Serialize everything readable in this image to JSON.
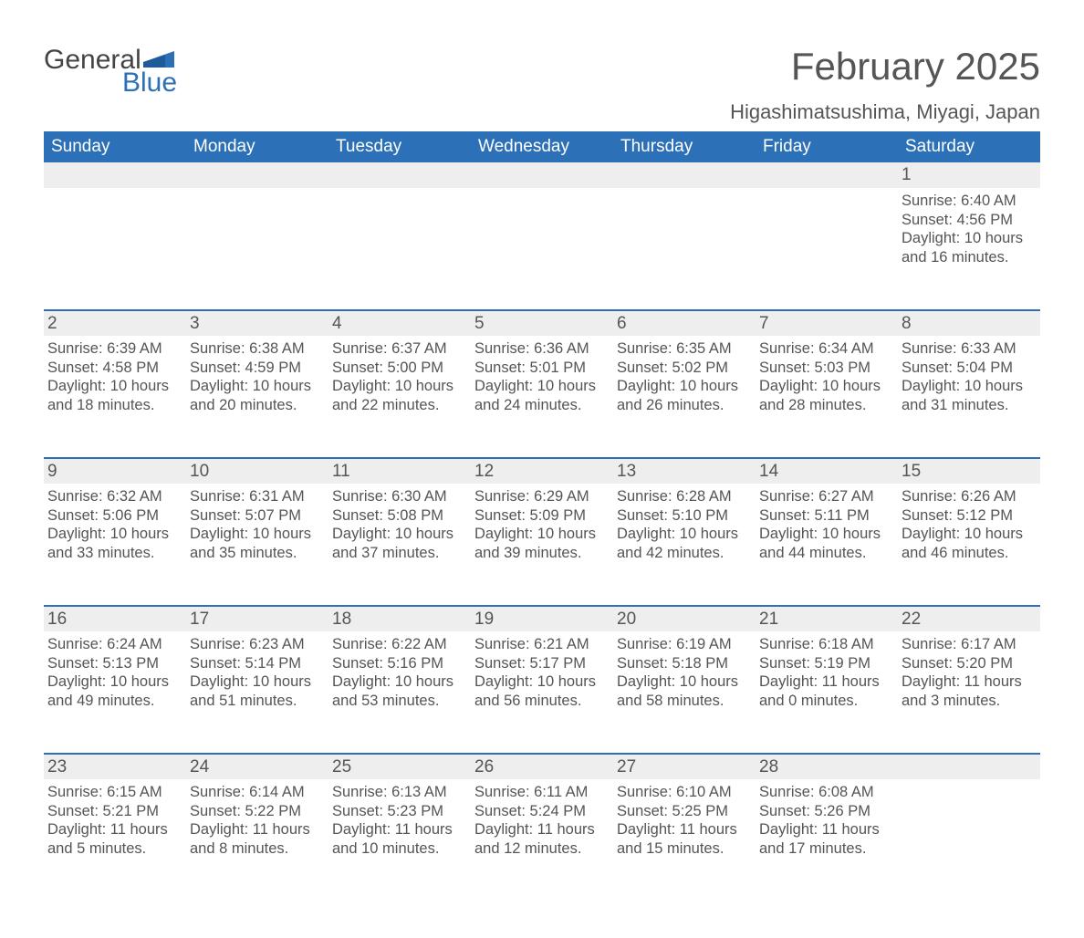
{
  "logo": {
    "word1": "General",
    "word2": "Blue",
    "text_color": "#444444",
    "accent_color": "#2c70b7",
    "fontsize": 30
  },
  "header": {
    "title": "February 2025",
    "title_fontsize": 42,
    "title_color": "#555555",
    "location": "Higashimatsushima, Miyagi, Japan",
    "location_fontsize": 22,
    "location_color": "#555555"
  },
  "calendar": {
    "type": "table",
    "header_bg": "#2c71b8",
    "header_text_color": "#ffffff",
    "header_fontsize": 19,
    "daynum_bg": "#eeeeee",
    "daynum_color": "#555555",
    "daynum_fontsize": 19,
    "row_border_color": "#2c71b8",
    "body_text_color": "#555555",
    "body_fontsize": 16.5,
    "background_color": "#ffffff",
    "columns": [
      "Sunday",
      "Monday",
      "Tuesday",
      "Wednesday",
      "Thursday",
      "Friday",
      "Saturday"
    ],
    "column_count": 7,
    "weeks": [
      [
        null,
        null,
        null,
        null,
        null,
        null,
        {
          "day": "1",
          "sunrise": "Sunrise: 6:40 AM",
          "sunset": "Sunset: 4:56 PM",
          "daylight": "Daylight: 10 hours and 16 minutes."
        }
      ],
      [
        {
          "day": "2",
          "sunrise": "Sunrise: 6:39 AM",
          "sunset": "Sunset: 4:58 PM",
          "daylight": "Daylight: 10 hours and 18 minutes."
        },
        {
          "day": "3",
          "sunrise": "Sunrise: 6:38 AM",
          "sunset": "Sunset: 4:59 PM",
          "daylight": "Daylight: 10 hours and 20 minutes."
        },
        {
          "day": "4",
          "sunrise": "Sunrise: 6:37 AM",
          "sunset": "Sunset: 5:00 PM",
          "daylight": "Daylight: 10 hours and 22 minutes."
        },
        {
          "day": "5",
          "sunrise": "Sunrise: 6:36 AM",
          "sunset": "Sunset: 5:01 PM",
          "daylight": "Daylight: 10 hours and 24 minutes."
        },
        {
          "day": "6",
          "sunrise": "Sunrise: 6:35 AM",
          "sunset": "Sunset: 5:02 PM",
          "daylight": "Daylight: 10 hours and 26 minutes."
        },
        {
          "day": "7",
          "sunrise": "Sunrise: 6:34 AM",
          "sunset": "Sunset: 5:03 PM",
          "daylight": "Daylight: 10 hours and 28 minutes."
        },
        {
          "day": "8",
          "sunrise": "Sunrise: 6:33 AM",
          "sunset": "Sunset: 5:04 PM",
          "daylight": "Daylight: 10 hours and 31 minutes."
        }
      ],
      [
        {
          "day": "9",
          "sunrise": "Sunrise: 6:32 AM",
          "sunset": "Sunset: 5:06 PM",
          "daylight": "Daylight: 10 hours and 33 minutes."
        },
        {
          "day": "10",
          "sunrise": "Sunrise: 6:31 AM",
          "sunset": "Sunset: 5:07 PM",
          "daylight": "Daylight: 10 hours and 35 minutes."
        },
        {
          "day": "11",
          "sunrise": "Sunrise: 6:30 AM",
          "sunset": "Sunset: 5:08 PM",
          "daylight": "Daylight: 10 hours and 37 minutes."
        },
        {
          "day": "12",
          "sunrise": "Sunrise: 6:29 AM",
          "sunset": "Sunset: 5:09 PM",
          "daylight": "Daylight: 10 hours and 39 minutes."
        },
        {
          "day": "13",
          "sunrise": "Sunrise: 6:28 AM",
          "sunset": "Sunset: 5:10 PM",
          "daylight": "Daylight: 10 hours and 42 minutes."
        },
        {
          "day": "14",
          "sunrise": "Sunrise: 6:27 AM",
          "sunset": "Sunset: 5:11 PM",
          "daylight": "Daylight: 10 hours and 44 minutes."
        },
        {
          "day": "15",
          "sunrise": "Sunrise: 6:26 AM",
          "sunset": "Sunset: 5:12 PM",
          "daylight": "Daylight: 10 hours and 46 minutes."
        }
      ],
      [
        {
          "day": "16",
          "sunrise": "Sunrise: 6:24 AM",
          "sunset": "Sunset: 5:13 PM",
          "daylight": "Daylight: 10 hours and 49 minutes."
        },
        {
          "day": "17",
          "sunrise": "Sunrise: 6:23 AM",
          "sunset": "Sunset: 5:14 PM",
          "daylight": "Daylight: 10 hours and 51 minutes."
        },
        {
          "day": "18",
          "sunrise": "Sunrise: 6:22 AM",
          "sunset": "Sunset: 5:16 PM",
          "daylight": "Daylight: 10 hours and 53 minutes."
        },
        {
          "day": "19",
          "sunrise": "Sunrise: 6:21 AM",
          "sunset": "Sunset: 5:17 PM",
          "daylight": "Daylight: 10 hours and 56 minutes."
        },
        {
          "day": "20",
          "sunrise": "Sunrise: 6:19 AM",
          "sunset": "Sunset: 5:18 PM",
          "daylight": "Daylight: 10 hours and 58 minutes."
        },
        {
          "day": "21",
          "sunrise": "Sunrise: 6:18 AM",
          "sunset": "Sunset: 5:19 PM",
          "daylight": "Daylight: 11 hours and 0 minutes."
        },
        {
          "day": "22",
          "sunrise": "Sunrise: 6:17 AM",
          "sunset": "Sunset: 5:20 PM",
          "daylight": "Daylight: 11 hours and 3 minutes."
        }
      ],
      [
        {
          "day": "23",
          "sunrise": "Sunrise: 6:15 AM",
          "sunset": "Sunset: 5:21 PM",
          "daylight": "Daylight: 11 hours and 5 minutes."
        },
        {
          "day": "24",
          "sunrise": "Sunrise: 6:14 AM",
          "sunset": "Sunset: 5:22 PM",
          "daylight": "Daylight: 11 hours and 8 minutes."
        },
        {
          "day": "25",
          "sunrise": "Sunrise: 6:13 AM",
          "sunset": "Sunset: 5:23 PM",
          "daylight": "Daylight: 11 hours and 10 minutes."
        },
        {
          "day": "26",
          "sunrise": "Sunrise: 6:11 AM",
          "sunset": "Sunset: 5:24 PM",
          "daylight": "Daylight: 11 hours and 12 minutes."
        },
        {
          "day": "27",
          "sunrise": "Sunrise: 6:10 AM",
          "sunset": "Sunset: 5:25 PM",
          "daylight": "Daylight: 11 hours and 15 minutes."
        },
        {
          "day": "28",
          "sunrise": "Sunrise: 6:08 AM",
          "sunset": "Sunset: 5:26 PM",
          "daylight": "Daylight: 11 hours and 17 minutes."
        },
        null
      ]
    ]
  }
}
